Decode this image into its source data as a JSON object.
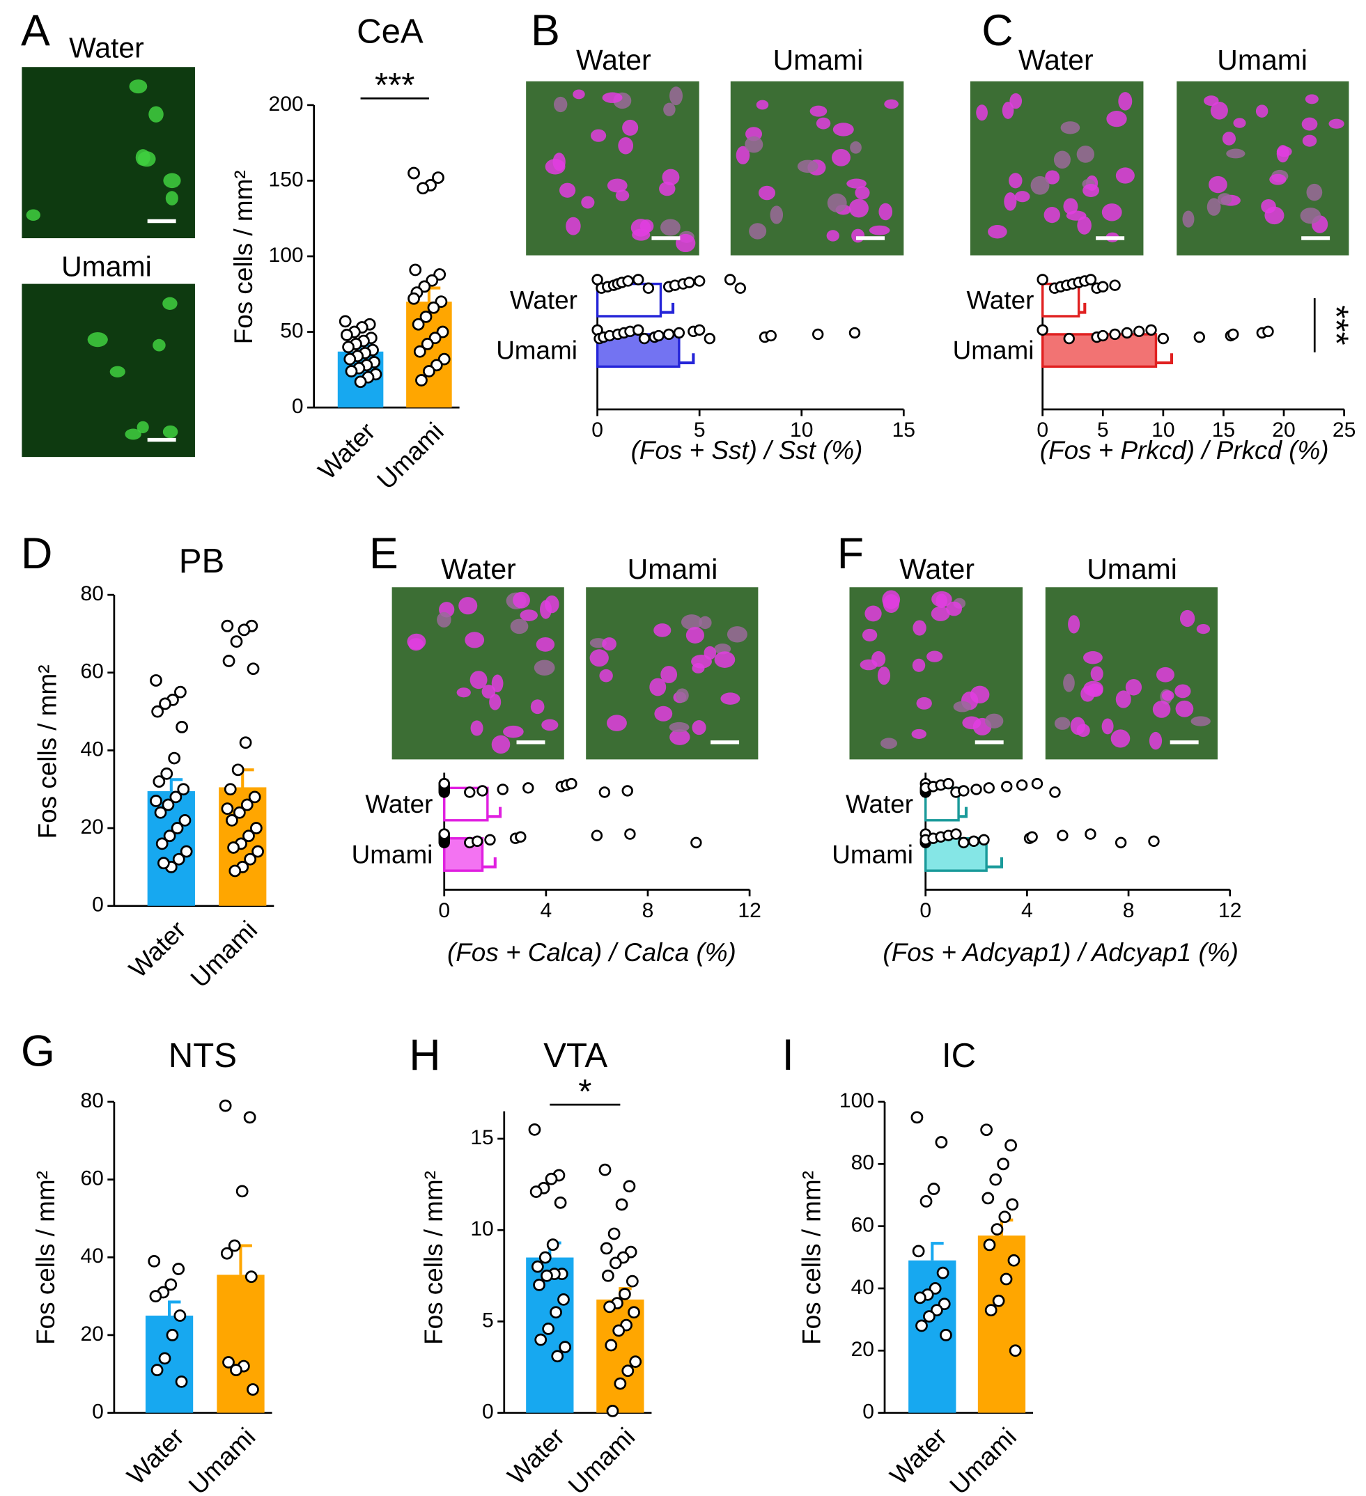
{
  "chart_data": [
    {
      "type": "bar",
      "panel": "A",
      "title": "CeA",
      "image_labels": [
        "Water",
        "Umami"
      ],
      "categories": [
        "Water",
        "Umami"
      ],
      "values": [
        37,
        70
      ],
      "errors": [
        4,
        9
      ],
      "colors": [
        "#17a8f0",
        "#ffa600"
      ],
      "points": [
        [
          57,
          55,
          53,
          50,
          48,
          46,
          44,
          42,
          40,
          38,
          36,
          34,
          32,
          30,
          28,
          26,
          24,
          22,
          20,
          17
        ],
        [
          155,
          152,
          147,
          145,
          91,
          88,
          84,
          80,
          76,
          70,
          66,
          60,
          55,
          50,
          46,
          42,
          37,
          32,
          28,
          24,
          18,
          72
        ]
      ],
      "ylabel": "Fos cells / mm²",
      "ylim": [
        0,
        200
      ],
      "yticks": [
        0,
        50,
        100,
        150,
        200
      ],
      "significance": "***"
    },
    {
      "type": "barh",
      "panel": "B",
      "image_labels": [
        "Water",
        "Umami"
      ],
      "categories": [
        "Water",
        "Umami"
      ],
      "values": [
        3.1,
        4.0
      ],
      "errors": [
        0.6,
        0.7
      ],
      "colors": [
        "#ffffff",
        "#7373f2"
      ],
      "edge_color": "#2424d8",
      "points": [
        [
          0,
          0.2,
          0.5,
          0.8,
          1.0,
          1.2,
          1.5,
          2.0,
          2.5,
          3.5,
          3.8,
          4.2,
          4.5,
          5.0,
          6.5,
          7.0
        ],
        [
          0,
          0.1,
          0.3,
          0.6,
          1.0,
          1.3,
          1.6,
          2.0,
          2.3,
          2.8,
          3.0,
          3.5,
          4.0,
          4.7,
          5.0,
          5.5,
          8.2,
          8.5,
          10.8,
          12.6
        ]
      ],
      "xlabel": "(Fos + Sst) / Sst (%)",
      "xlim": [
        0,
        15
      ],
      "xticks": [
        0,
        5,
        10,
        15
      ]
    },
    {
      "type": "barh",
      "panel": "C",
      "image_labels": [
        "Water",
        "Umami"
      ],
      "categories": [
        "Water",
        "Umami"
      ],
      "values": [
        3.0,
        9.4
      ],
      "errors": [
        0.5,
        1.3
      ],
      "colors": [
        "#ffffff",
        "#f27373"
      ],
      "edge_color": "#e02020",
      "points": [
        [
          0,
          1,
          1.5,
          2,
          2.5,
          3,
          3.5,
          4,
          4.5,
          5,
          6
        ],
        [
          0,
          2.2,
          4.5,
          5,
          6,
          7,
          8,
          9,
          10,
          13,
          15.6,
          15.8,
          18.2,
          18.7
        ]
      ],
      "xlabel": "(Fos + Prkcd) / Prkcd (%)",
      "xlim": [
        0,
        25
      ],
      "xticks": [
        0,
        5,
        10,
        15,
        20,
        25
      ],
      "significance": "***"
    },
    {
      "type": "bar",
      "panel": "D",
      "title": "PB",
      "categories": [
        "Water",
        "Umami"
      ],
      "values": [
        29.5,
        30.5
      ],
      "errors": [
        3,
        4.5
      ],
      "colors": [
        "#17a8f0",
        "#ffa600"
      ],
      "points": [
        [
          58,
          55,
          53,
          52,
          50,
          46,
          38,
          34,
          32,
          30,
          28,
          26,
          24,
          22,
          20,
          18,
          16,
          14,
          12,
          10,
          11,
          27
        ],
        [
          72,
          72,
          71,
          68,
          63,
          61,
          42,
          35,
          30,
          28,
          26,
          24,
          22,
          20,
          18,
          16,
          15,
          14,
          12,
          10,
          9,
          25
        ]
      ],
      "ylabel": "Fos cells / mm²",
      "ylim": [
        0,
        80
      ],
      "yticks": [
        0,
        20,
        40,
        60,
        80
      ]
    },
    {
      "type": "barh",
      "panel": "E",
      "image_labels": [
        "Water",
        "Umami"
      ],
      "categories": [
        "Water",
        "Umami"
      ],
      "values": [
        1.7,
        1.5
      ],
      "errors": [
        0.5,
        0.5
      ],
      "colors": [
        "#ffffff",
        "#f373f2"
      ],
      "edge_color": "#e020e0",
      "points": [
        [
          0,
          0,
          0,
          0,
          0,
          0,
          0,
          0,
          1,
          1.5,
          2.3,
          3.3,
          4.6,
          4.8,
          5,
          6.3,
          7.2
        ],
        [
          0,
          0,
          0,
          0,
          0,
          0,
          0,
          0,
          1,
          1.3,
          1.8,
          2.8,
          3,
          6,
          7.3,
          9.9
        ]
      ],
      "xlabel": "(Fos + Calca) / Calca (%)",
      "xlim": [
        0,
        12
      ],
      "xticks": [
        0,
        4,
        8,
        12
      ]
    },
    {
      "type": "barh",
      "panel": "F",
      "image_labels": [
        "Water",
        "Umami"
      ],
      "categories": [
        "Water",
        "Umami"
      ],
      "values": [
        1.3,
        2.4
      ],
      "errors": [
        0.3,
        0.6
      ],
      "colors": [
        "#ffffff",
        "#85e6e6"
      ],
      "edge_color": "#1a9a9a",
      "points": [
        [
          0,
          0,
          0,
          0,
          0,
          0.3,
          0.6,
          0.9,
          1.2,
          1.5,
          2.0,
          2.5,
          3.2,
          3.8,
          4.4,
          5.1
        ],
        [
          0,
          0,
          0,
          0,
          0.3,
          0.6,
          0.9,
          1.2,
          1.5,
          1.9,
          2.3,
          4.1,
          4.2,
          5.4,
          6.5,
          7.7,
          9
        ]
      ],
      "xlabel": "(Fos + Adcyap1) / Adcyap1 (%)",
      "xlim": [
        0,
        12
      ],
      "xticks": [
        0,
        4,
        8,
        12
      ]
    },
    {
      "type": "bar",
      "panel": "G",
      "title": "NTS",
      "categories": [
        "Water",
        "Umami"
      ],
      "values": [
        25,
        35.5
      ],
      "errors": [
        3.5,
        7.5
      ],
      "colors": [
        "#17a8f0",
        "#ffa600"
      ],
      "points": [
        [
          39,
          37,
          33,
          31,
          30,
          25,
          20,
          14,
          11,
          8
        ],
        [
          79,
          76,
          57,
          43,
          41,
          35,
          12,
          11,
          13,
          6
        ]
      ],
      "ylabel": "Fos cells / mm²",
      "ylim": [
        0,
        80
      ],
      "yticks": [
        0,
        20,
        40,
        60,
        80
      ]
    },
    {
      "type": "bar",
      "panel": "H",
      "title": "VTA",
      "categories": [
        "Water",
        "Umami"
      ],
      "values": [
        8.5,
        6.2
      ],
      "errors": [
        0.8,
        0.6
      ],
      "colors": [
        "#17a8f0",
        "#ffa600"
      ],
      "points": [
        [
          15.5,
          13,
          12.8,
          12.3,
          12.1,
          11.5,
          9.2,
          8.5,
          8.0,
          7.6,
          7.6,
          7.5,
          7.0,
          6.2,
          5.5,
          4.6,
          4.0,
          3.6,
          3.1
        ],
        [
          13.3,
          12.4,
          11.4,
          9.8,
          9.0,
          8.8,
          8.5,
          8.2,
          7.5,
          7.2,
          6.5,
          6.0,
          5.8,
          5.5,
          4.8,
          4.5,
          3.7,
          2.8,
          2.3,
          1.6,
          0.1
        ]
      ],
      "ylabel": "Fos cells / mm²",
      "ylim": [
        0,
        16.5
      ],
      "yticks": [
        0,
        5,
        10,
        15
      ],
      "significance": "*"
    },
    {
      "type": "bar",
      "panel": "I",
      "title": "IC",
      "categories": [
        "Water",
        "Umami"
      ],
      "values": [
        49,
        57
      ],
      "errors": [
        5.5,
        5
      ],
      "colors": [
        "#17a8f0",
        "#ffa600"
      ],
      "points": [
        [
          95,
          87,
          72,
          68,
          52,
          45,
          40,
          38,
          37,
          35,
          33,
          31,
          28,
          25
        ],
        [
          91,
          86,
          80,
          75,
          69,
          67,
          63,
          59,
          54,
          49,
          43,
          36,
          33,
          20
        ]
      ],
      "ylabel": "Fos cells / mm²",
      "ylim": [
        0,
        100
      ],
      "yticks": [
        0,
        20,
        40,
        60,
        80,
        100
      ]
    }
  ]
}
